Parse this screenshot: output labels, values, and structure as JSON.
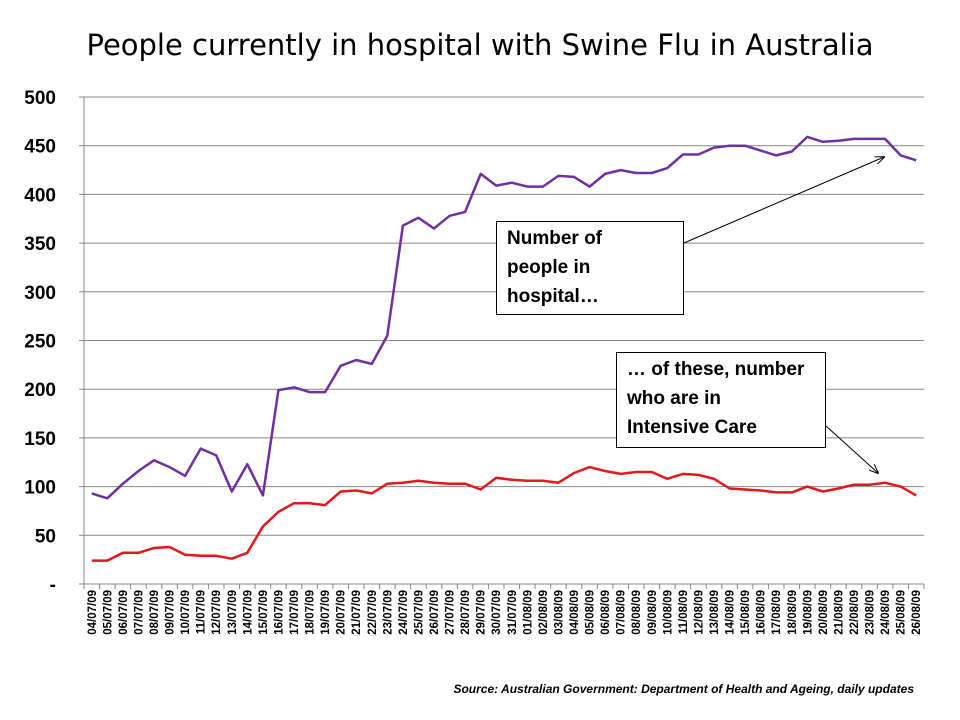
{
  "chart_data": {
    "type": "line",
    "title": "People currently in hospital with Swine Flu in Australia",
    "xlabel": "",
    "ylabel": "",
    "ylim": [
      0,
      500
    ],
    "yticks": [
      0,
      50,
      100,
      150,
      200,
      250,
      300,
      350,
      400,
      450,
      500
    ],
    "ytick_labels": [
      "-",
      "50",
      "100",
      "150",
      "200",
      "250",
      "300",
      "350",
      "400",
      "450",
      "500"
    ],
    "grid": true,
    "categories": [
      "04/07/09",
      "05/07/09",
      "06/07/09",
      "07/07/09",
      "08/07/09",
      "09/07/09",
      "10/07/09",
      "11/07/09",
      "12/07/09",
      "13/07/09",
      "14/07/09",
      "15/07/09",
      "16/07/09",
      "17/07/09",
      "18/07/09",
      "19/07/09",
      "20/07/09",
      "21/07/09",
      "22/07/09",
      "23/07/09",
      "24/07/09",
      "25/07/09",
      "26/07/09",
      "27/07/09",
      "28/07/09",
      "29/07/09",
      "30/07/09",
      "31/07/09",
      "01/08/09",
      "02/08/09",
      "03/08/09",
      "04/08/09",
      "05/08/09",
      "06/08/09",
      "07/08/09",
      "08/08/09",
      "09/08/09",
      "10/08/09",
      "11/08/09",
      "12/08/09",
      "13/08/09",
      "14/08/09",
      "15/08/09",
      "16/08/09",
      "17/08/09",
      "18/08/09",
      "19/08/09",
      "20/08/09",
      "21/08/09",
      "22/08/09",
      "23/08/09",
      "24/08/09",
      "25/08/09",
      "26/08/09"
    ],
    "series": [
      {
        "color": "#7030A0",
        "values": [
          93,
          88,
          103,
          116,
          127,
          120,
          111,
          139,
          132,
          95,
          123,
          91,
          199,
          202,
          197,
          197,
          224,
          230,
          226,
          255,
          368,
          376,
          365,
          378,
          382,
          421,
          409,
          412,
          408,
          408,
          419,
          418,
          408,
          421,
          425,
          422,
          422,
          427,
          441,
          441,
          448,
          450,
          450,
          445,
          440,
          444,
          459,
          454,
          455,
          457,
          457,
          457,
          440,
          435
        ]
      },
      {
        "color": "#E3181C",
        "values": [
          24,
          24,
          32,
          32,
          37,
          38,
          30,
          29,
          29,
          26,
          32,
          59,
          74,
          83,
          83,
          81,
          95,
          96,
          93,
          103,
          104,
          106,
          104,
          103,
          103,
          97,
          109,
          107,
          106,
          106,
          104,
          114,
          120,
          116,
          113,
          115,
          115,
          108,
          113,
          112,
          108,
          98,
          97,
          96,
          94,
          94,
          100,
          95,
          98,
          102,
          102,
          104,
          100,
          91
        ]
      }
    ]
  },
  "annotations": {
    "hospital": [
      "Number of",
      "people in",
      "hospital…"
    ],
    "icu": [
      "… of these, number",
      "who are in",
      "Intensive Care"
    ]
  },
  "source_note": "Source: Australian Government: Department of Health and Ageing, daily updates"
}
